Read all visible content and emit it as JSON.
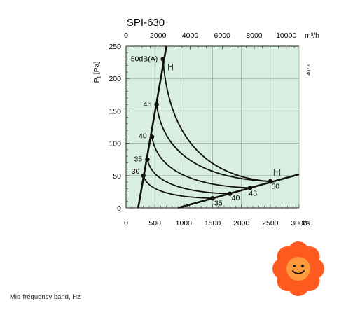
{
  "chart_data": {
    "type": "line",
    "title": "SPI-630",
    "ylabel": "P",
    "ylabel_subscript": "t",
    "ylabel_unit": "[Pa]",
    "ylim": [
      0,
      250
    ],
    "y_ticks": [
      "0",
      "50",
      "100",
      "150",
      "200",
      "250"
    ],
    "xlabel_bottom": "l/s",
    "xlim_bottom": [
      0,
      3000
    ],
    "x_ticks_bottom": [
      "0",
      "500",
      "1000",
      "1500",
      "2000",
      "2500",
      "3000"
    ],
    "xlabel_top": "m³/h",
    "xlim_top": [
      0,
      10800
    ],
    "x_ticks_top": [
      "0",
      "2000",
      "4000",
      "6000",
      "8000",
      "10000"
    ],
    "grid": true,
    "background_color": "#d8eee1",
    "line_color": "#111111",
    "side_label": "4073",
    "system_lines": [
      {
        "name": "steep",
        "x": [
          210,
          700
        ],
        "y": [
          0,
          250
        ]
      },
      {
        "name": "flat",
        "x": [
          900,
          3000
        ],
        "y": [
          0,
          52
        ]
      }
    ],
    "noise_curves": [
      {
        "label": "30",
        "start": {
          "x": 300,
          "y": 50
        },
        "end": {
          "x": 1500,
          "y": 15
        }
      },
      {
        "label": "35",
        "start": {
          "x": 370,
          "y": 75
        },
        "end": {
          "x": 1800,
          "y": 22
        }
      },
      {
        "label": "40",
        "start": {
          "x": 450,
          "y": 110
        },
        "end": {
          "x": 2150,
          "y": 31
        }
      },
      {
        "label": "45",
        "start": {
          "x": 530,
          "y": 160
        },
        "end": {
          "x": 2500,
          "y": 41
        }
      },
      {
        "label": "50dB(A)",
        "start": {
          "x": 640,
          "y": 230
        },
        "end": {
          "x": 2500,
          "y": 41
        }
      }
    ],
    "noise_labels_bottom": [
      "35",
      "40",
      "45",
      "50"
    ],
    "range_markers": [
      {
        "label": "|-|",
        "x": 720,
        "y": 215
      },
      {
        "label": "|+|",
        "x": 2550,
        "y": 52
      }
    ]
  },
  "caption": "Mid-frequency band, Hz",
  "flower": {
    "petal_color": "#ff5a1f",
    "center_color": "#ff9a3c"
  }
}
